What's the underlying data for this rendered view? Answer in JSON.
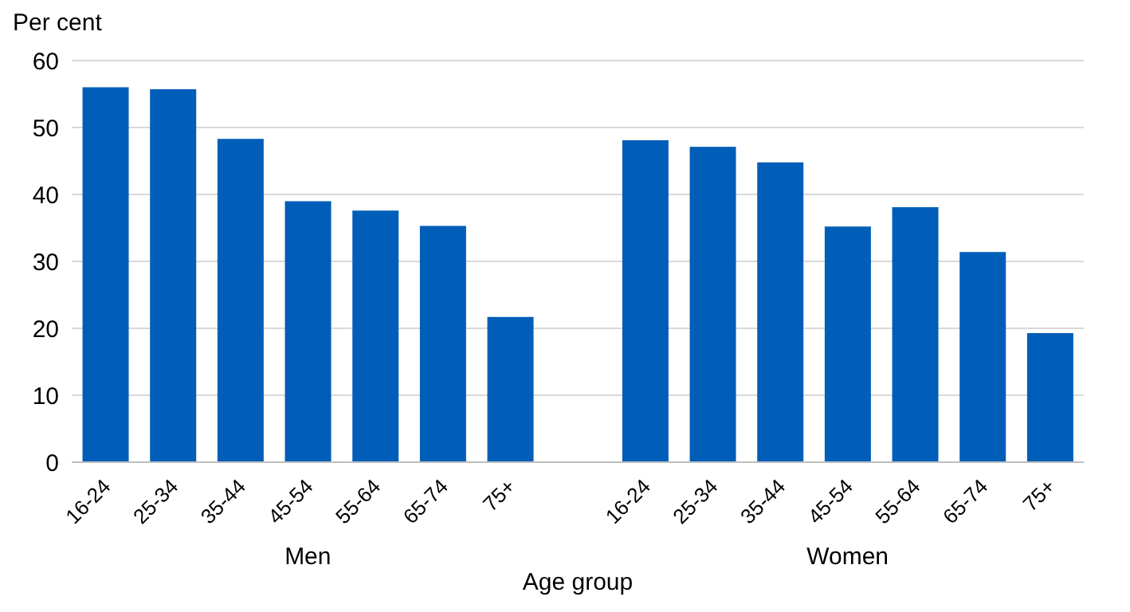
{
  "chart_data": {
    "type": "bar",
    "ylabel": "Per cent",
    "xlabel": "Age group",
    "categories": [
      "16-24",
      "25-34",
      "35-44",
      "45-54",
      "55-64",
      "65-74",
      "75+",
      null,
      "16-24",
      "25-34",
      "35-44",
      "45-54",
      "55-64",
      "65-74",
      "75+"
    ],
    "values": [
      56,
      55.7,
      48.3,
      39.0,
      37.6,
      35.3,
      21.7,
      null,
      48.1,
      47.1,
      44.8,
      35.2,
      38.1,
      31.4,
      19.3
    ],
    "color": "#005eb8",
    "annotations": [
      "Men",
      "Women"
    ],
    "ylim": [
      0,
      60
    ],
    "yticks": [
      0,
      10,
      20,
      30,
      40,
      50,
      60
    ],
    "grid": "y",
    "legend": false
  }
}
